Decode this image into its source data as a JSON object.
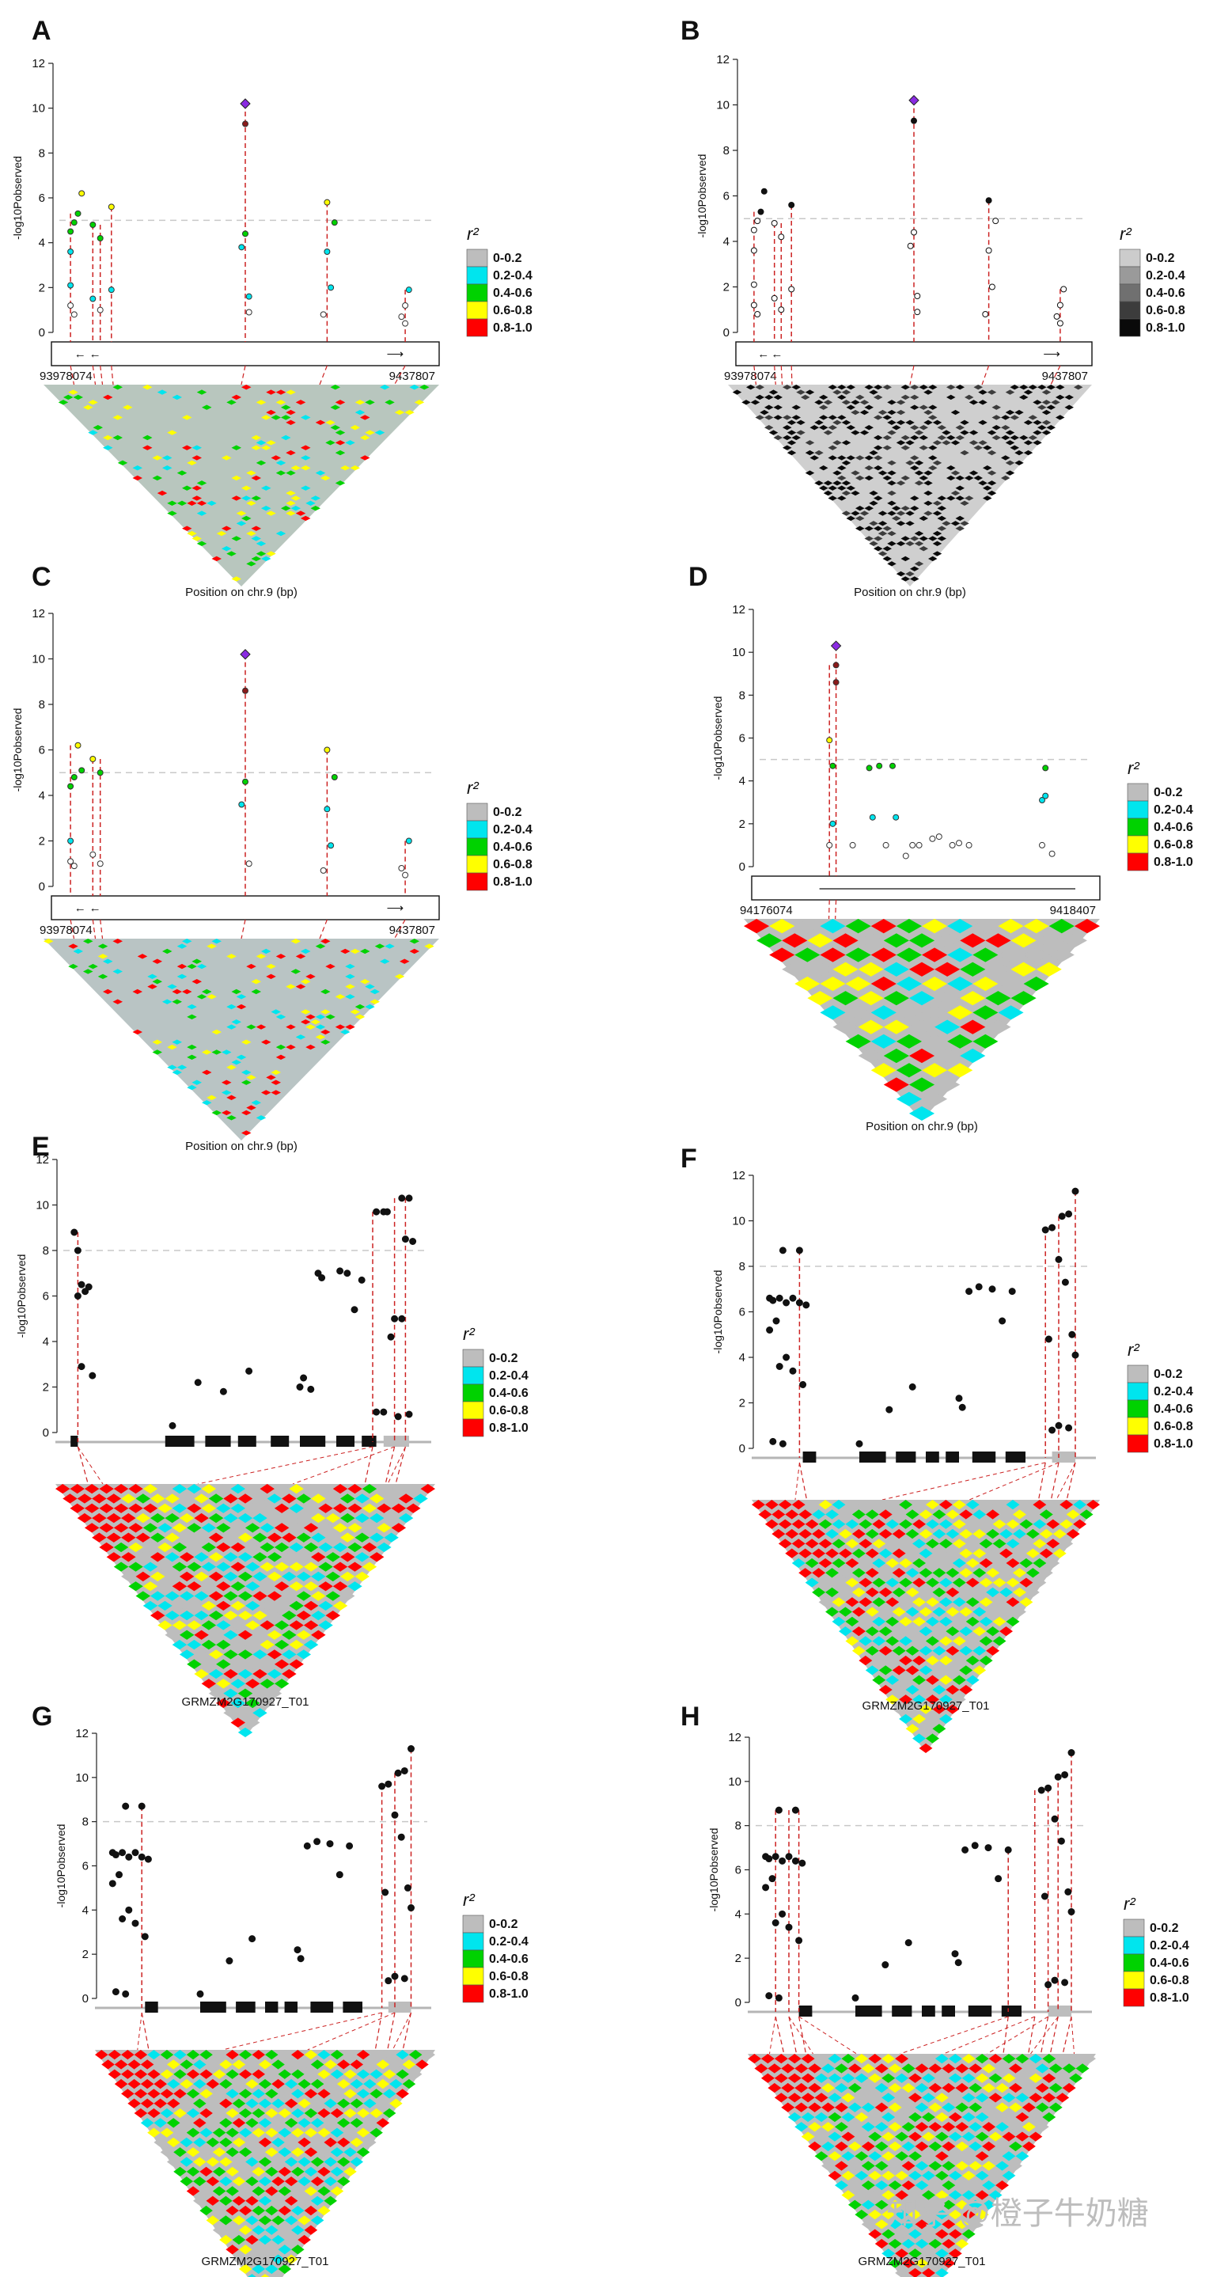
{
  "colors": {
    "r2_color": [
      "#bdbdbd",
      "#00e5ee",
      "#00d200",
      "#ffff00",
      "#ff0000"
    ],
    "r2_gray": [
      "#cccccc",
      "#9a9a9a",
      "#707070",
      "#3c3c3c",
      "#0a0a0a"
    ],
    "threshold": "#c8c8c8",
    "dash": "#cc2222",
    "lead": "#8a2be2"
  },
  "legend": {
    "title": "r²",
    "items": [
      "0-0.2",
      "0.2-0.4",
      "0.4-0.6",
      "0.6-0.8",
      "0.8-1.0"
    ]
  },
  "y_label": "-log10Pobserved",
  "watermark": "知乎 @橙子牛奶糖",
  "chart_data": [
    {
      "panel": "A",
      "type": "scatter",
      "style": "color",
      "ylim": [
        0,
        12
      ],
      "yticks": [
        0,
        2,
        4,
        6,
        8,
        10,
        12
      ],
      "threshold": 5,
      "region_start": "93978074",
      "region_end": "9437807",
      "xlabel": "Position on chr.9 (bp)",
      "columns": [
        0.03,
        0.09,
        0.11,
        0.14,
        0.5,
        0.72,
        0.93
      ],
      "lead": {
        "x": 0.5,
        "y": 10.2
      },
      "points": [
        [
          0.03,
          1.2
        ],
        [
          0.03,
          2.1
        ],
        [
          0.04,
          0.8
        ],
        [
          0.03,
          4.5
        ],
        [
          0.04,
          4.9
        ],
        [
          0.05,
          5.3
        ],
        [
          0.06,
          6.2
        ],
        [
          0.03,
          3.6
        ],
        [
          0.09,
          1.5
        ],
        [
          0.09,
          4.8
        ],
        [
          0.11,
          1.0
        ],
        [
          0.11,
          4.2
        ],
        [
          0.14,
          5.6
        ],
        [
          0.14,
          1.9
        ],
        [
          0.5,
          9.3
        ],
        [
          0.5,
          4.4
        ],
        [
          0.49,
          3.8
        ],
        [
          0.51,
          0.9
        ],
        [
          0.51,
          1.6
        ],
        [
          0.72,
          5.8
        ],
        [
          0.72,
          3.6
        ],
        [
          0.73,
          2.0
        ],
        [
          0.71,
          0.8
        ],
        [
          0.74,
          4.9
        ],
        [
          0.93,
          0.4
        ],
        [
          0.92,
          0.7
        ],
        [
          0.94,
          1.9
        ],
        [
          0.93,
          1.2
        ]
      ]
    },
    {
      "panel": "B",
      "type": "scatter",
      "style": "gray",
      "ylim": [
        0,
        12
      ],
      "yticks": [
        0,
        2,
        4,
        6,
        8,
        10,
        12
      ],
      "threshold": 5,
      "region_start": "93978074",
      "region_end": "9437807",
      "xlabel": "Position on chr.9 (bp)",
      "columns": [
        0.03,
        0.09,
        0.11,
        0.14,
        0.5,
        0.72,
        0.93
      ],
      "lead": {
        "x": 0.5,
        "y": 10.2
      },
      "points": [
        [
          0.03,
          1.2
        ],
        [
          0.03,
          2.1
        ],
        [
          0.04,
          0.8
        ],
        [
          0.03,
          4.5
        ],
        [
          0.04,
          4.9
        ],
        [
          0.05,
          5.3
        ],
        [
          0.06,
          6.2
        ],
        [
          0.03,
          3.6
        ],
        [
          0.09,
          1.5
        ],
        [
          0.09,
          4.8
        ],
        [
          0.11,
          1.0
        ],
        [
          0.11,
          4.2
        ],
        [
          0.14,
          5.6
        ],
        [
          0.14,
          1.9
        ],
        [
          0.5,
          9.3
        ],
        [
          0.5,
          4.4
        ],
        [
          0.49,
          3.8
        ],
        [
          0.51,
          0.9
        ],
        [
          0.51,
          1.6
        ],
        [
          0.72,
          5.8
        ],
        [
          0.72,
          3.6
        ],
        [
          0.73,
          2.0
        ],
        [
          0.71,
          0.8
        ],
        [
          0.74,
          4.9
        ],
        [
          0.93,
          0.4
        ],
        [
          0.92,
          0.7
        ],
        [
          0.94,
          1.9
        ],
        [
          0.93,
          1.2
        ]
      ]
    },
    {
      "panel": "C",
      "type": "scatter",
      "style": "color",
      "ylim": [
        0,
        12
      ],
      "yticks": [
        0,
        2,
        4,
        6,
        8,
        10,
        12
      ],
      "threshold": 5,
      "region_start": "93978074",
      "region_end": "9437807",
      "xlabel": "Position on chr.9 (bp)",
      "columns": [
        0.03,
        0.09,
        0.11,
        0.5,
        0.72,
        0.93
      ],
      "lead": {
        "x": 0.5,
        "y": 10.2
      },
      "points": [
        [
          0.03,
          1.1
        ],
        [
          0.03,
          2.0
        ],
        [
          0.04,
          0.9
        ],
        [
          0.03,
          4.4
        ],
        [
          0.04,
          4.8
        ],
        [
          0.05,
          6.2
        ],
        [
          0.06,
          5.1
        ],
        [
          0.09,
          1.4
        ],
        [
          0.09,
          5.6
        ],
        [
          0.11,
          1.0
        ],
        [
          0.11,
          5.0
        ],
        [
          0.5,
          8.6
        ],
        [
          0.5,
          4.6
        ],
        [
          0.49,
          3.6
        ],
        [
          0.51,
          1.0
        ],
        [
          0.72,
          6.0
        ],
        [
          0.72,
          3.4
        ],
        [
          0.73,
          1.8
        ],
        [
          0.71,
          0.7
        ],
        [
          0.74,
          4.8
        ],
        [
          0.93,
          0.5
        ],
        [
          0.92,
          0.8
        ],
        [
          0.94,
          2.0
        ]
      ]
    },
    {
      "panel": "D",
      "type": "scatter",
      "style": "color",
      "ylim": [
        0,
        12
      ],
      "yticks": [
        0,
        2,
        4,
        6,
        8,
        10,
        12
      ],
      "threshold": 5,
      "region_start": "94176074",
      "region_end": "9418407",
      "xlabel": "Position on chr.9 (bp)",
      "columns": [
        0.21,
        0.23
      ],
      "lead": {
        "x": 0.23,
        "y": 10.3
      },
      "points": [
        [
          0.21,
          5.9
        ],
        [
          0.22,
          4.7
        ],
        [
          0.23,
          9.4
        ],
        [
          0.23,
          8.6
        ],
        [
          0.21,
          1.0
        ],
        [
          0.22,
          2.0
        ],
        [
          0.28,
          1.0
        ],
        [
          0.33,
          4.6
        ],
        [
          0.36,
          4.7
        ],
        [
          0.38,
          1.0
        ],
        [
          0.4,
          4.7
        ],
        [
          0.34,
          2.3
        ],
        [
          0.41,
          2.3
        ],
        [
          0.44,
          0.5
        ],
        [
          0.46,
          1.0
        ],
        [
          0.48,
          1.0
        ],
        [
          0.52,
          1.3
        ],
        [
          0.54,
          1.4
        ],
        [
          0.58,
          1.0
        ],
        [
          0.6,
          1.1
        ],
        [
          0.63,
          1.0
        ],
        [
          0.86,
          4.6
        ],
        [
          0.85,
          3.1
        ],
        [
          0.86,
          3.3
        ],
        [
          0.88,
          0.6
        ],
        [
          0.85,
          1.0
        ]
      ]
    },
    {
      "panel": "E",
      "type": "scatter",
      "style": "black",
      "ylim": [
        0,
        12
      ],
      "yticks": [
        0,
        2,
        4,
        6,
        8,
        10,
        12
      ],
      "threshold": 8,
      "gene": "GRMZM2G170927_T01",
      "columns": [
        0.04,
        0.85,
        0.91,
        0.94
      ],
      "points": [
        [
          0.03,
          8.8
        ],
        [
          0.04,
          8.0
        ],
        [
          0.05,
          6.5
        ],
        [
          0.06,
          6.2
        ],
        [
          0.07,
          6.4
        ],
        [
          0.04,
          6.0
        ],
        [
          0.05,
          2.9
        ],
        [
          0.08,
          2.5
        ],
        [
          0.3,
          0.3
        ],
        [
          0.37,
          2.2
        ],
        [
          0.44,
          1.8
        ],
        [
          0.51,
          2.7
        ],
        [
          0.65,
          2.0
        ],
        [
          0.66,
          2.4
        ],
        [
          0.68,
          1.9
        ],
        [
          0.7,
          7.0
        ],
        [
          0.71,
          6.8
        ],
        [
          0.76,
          7.1
        ],
        [
          0.78,
          7.0
        ],
        [
          0.8,
          5.4
        ],
        [
          0.82,
          6.7
        ],
        [
          0.86,
          9.7
        ],
        [
          0.88,
          9.7
        ],
        [
          0.89,
          9.7
        ],
        [
          0.93,
          10.3
        ],
        [
          0.95,
          10.3
        ],
        [
          0.94,
          8.5
        ],
        [
          0.96,
          8.4
        ],
        [
          0.9,
          4.2
        ],
        [
          0.91,
          5.0
        ],
        [
          0.93,
          5.0
        ],
        [
          0.86,
          0.9
        ],
        [
          0.88,
          0.9
        ],
        [
          0.92,
          0.7
        ],
        [
          0.95,
          0.8
        ]
      ]
    },
    {
      "panel": "F",
      "type": "scatter",
      "style": "black",
      "ylim": [
        0,
        12
      ],
      "yticks": [
        0,
        2,
        4,
        6,
        8,
        10,
        12
      ],
      "threshold": 8,
      "gene": "GRMZM2G170927_T01",
      "columns": [
        0.12,
        0.86,
        0.9,
        0.95
      ],
      "points": [
        [
          0.03,
          6.6
        ],
        [
          0.04,
          6.5
        ],
        [
          0.06,
          6.6
        ],
        [
          0.08,
          6.4
        ],
        [
          0.1,
          6.6
        ],
        [
          0.12,
          6.4
        ],
        [
          0.14,
          6.3
        ],
        [
          0.03,
          5.2
        ],
        [
          0.05,
          5.6
        ],
        [
          0.06,
          3.6
        ],
        [
          0.08,
          4.0
        ],
        [
          0.1,
          3.4
        ],
        [
          0.07,
          8.7
        ],
        [
          0.12,
          8.7
        ],
        [
          0.04,
          0.3
        ],
        [
          0.07,
          0.2
        ],
        [
          0.13,
          2.8
        ],
        [
          0.3,
          0.2
        ],
        [
          0.39,
          1.7
        ],
        [
          0.46,
          2.7
        ],
        [
          0.6,
          2.2
        ],
        [
          0.61,
          1.8
        ],
        [
          0.63,
          6.9
        ],
        [
          0.66,
          7.1
        ],
        [
          0.7,
          7.0
        ],
        [
          0.73,
          5.6
        ],
        [
          0.76,
          6.9
        ],
        [
          0.86,
          9.6
        ],
        [
          0.88,
          9.7
        ],
        [
          0.91,
          10.2
        ],
        [
          0.93,
          10.3
        ],
        [
          0.95,
          11.3
        ],
        [
          0.9,
          8.3
        ],
        [
          0.92,
          7.3
        ],
        [
          0.94,
          5.0
        ],
        [
          0.95,
          4.1
        ],
        [
          0.87,
          4.8
        ],
        [
          0.88,
          0.8
        ],
        [
          0.9,
          1.0
        ],
        [
          0.93,
          0.9
        ]
      ]
    },
    {
      "panel": "G",
      "type": "scatter",
      "style": "black",
      "ylim": [
        0,
        12
      ],
      "yticks": [
        0,
        2,
        4,
        6,
        8,
        10,
        12
      ],
      "threshold": 8,
      "gene": "GRMZM2G170927_T01",
      "columns": [
        0.12,
        0.86,
        0.9,
        0.95
      ],
      "points": [
        [
          0.03,
          6.6
        ],
        [
          0.04,
          6.5
        ],
        [
          0.06,
          6.6
        ],
        [
          0.08,
          6.4
        ],
        [
          0.1,
          6.6
        ],
        [
          0.12,
          6.4
        ],
        [
          0.14,
          6.3
        ],
        [
          0.03,
          5.2
        ],
        [
          0.05,
          5.6
        ],
        [
          0.06,
          3.6
        ],
        [
          0.08,
          4.0
        ],
        [
          0.1,
          3.4
        ],
        [
          0.07,
          8.7
        ],
        [
          0.12,
          8.7
        ],
        [
          0.04,
          0.3
        ],
        [
          0.07,
          0.2
        ],
        [
          0.13,
          2.8
        ],
        [
          0.3,
          0.2
        ],
        [
          0.39,
          1.7
        ],
        [
          0.46,
          2.7
        ],
        [
          0.6,
          2.2
        ],
        [
          0.61,
          1.8
        ],
        [
          0.63,
          6.9
        ],
        [
          0.66,
          7.1
        ],
        [
          0.7,
          7.0
        ],
        [
          0.73,
          5.6
        ],
        [
          0.76,
          6.9
        ],
        [
          0.86,
          9.6
        ],
        [
          0.88,
          9.7
        ],
        [
          0.91,
          10.2
        ],
        [
          0.93,
          10.3
        ],
        [
          0.95,
          11.3
        ],
        [
          0.9,
          8.3
        ],
        [
          0.92,
          7.3
        ],
        [
          0.94,
          5.0
        ],
        [
          0.95,
          4.1
        ],
        [
          0.87,
          4.8
        ],
        [
          0.88,
          0.8
        ],
        [
          0.9,
          1.0
        ],
        [
          0.93,
          0.9
        ]
      ]
    },
    {
      "panel": "H",
      "type": "scatter",
      "style": "black",
      "ylim": [
        0,
        12
      ],
      "yticks": [
        0,
        2,
        4,
        6,
        8,
        10,
        12
      ],
      "threshold": 8,
      "gene": "GRMZM2G170927_T01",
      "columns": [
        0.06,
        0.1,
        0.13,
        0.76,
        0.84,
        0.88,
        0.91,
        0.95
      ],
      "points": [
        [
          0.03,
          6.6
        ],
        [
          0.04,
          6.5
        ],
        [
          0.06,
          6.6
        ],
        [
          0.08,
          6.4
        ],
        [
          0.1,
          6.6
        ],
        [
          0.12,
          6.4
        ],
        [
          0.14,
          6.3
        ],
        [
          0.03,
          5.2
        ],
        [
          0.05,
          5.6
        ],
        [
          0.06,
          3.6
        ],
        [
          0.08,
          4.0
        ],
        [
          0.1,
          3.4
        ],
        [
          0.07,
          8.7
        ],
        [
          0.12,
          8.7
        ],
        [
          0.04,
          0.3
        ],
        [
          0.07,
          0.2
        ],
        [
          0.13,
          2.8
        ],
        [
          0.3,
          0.2
        ],
        [
          0.39,
          1.7
        ],
        [
          0.46,
          2.7
        ],
        [
          0.6,
          2.2
        ],
        [
          0.61,
          1.8
        ],
        [
          0.63,
          6.9
        ],
        [
          0.66,
          7.1
        ],
        [
          0.7,
          7.0
        ],
        [
          0.73,
          5.6
        ],
        [
          0.76,
          6.9
        ],
        [
          0.86,
          9.6
        ],
        [
          0.88,
          9.7
        ],
        [
          0.91,
          10.2
        ],
        [
          0.93,
          10.3
        ],
        [
          0.95,
          11.3
        ],
        [
          0.9,
          8.3
        ],
        [
          0.92,
          7.3
        ],
        [
          0.94,
          5.0
        ],
        [
          0.95,
          4.1
        ],
        [
          0.87,
          4.8
        ],
        [
          0.88,
          0.8
        ],
        [
          0.9,
          1.0
        ],
        [
          0.93,
          0.9
        ]
      ]
    }
  ]
}
